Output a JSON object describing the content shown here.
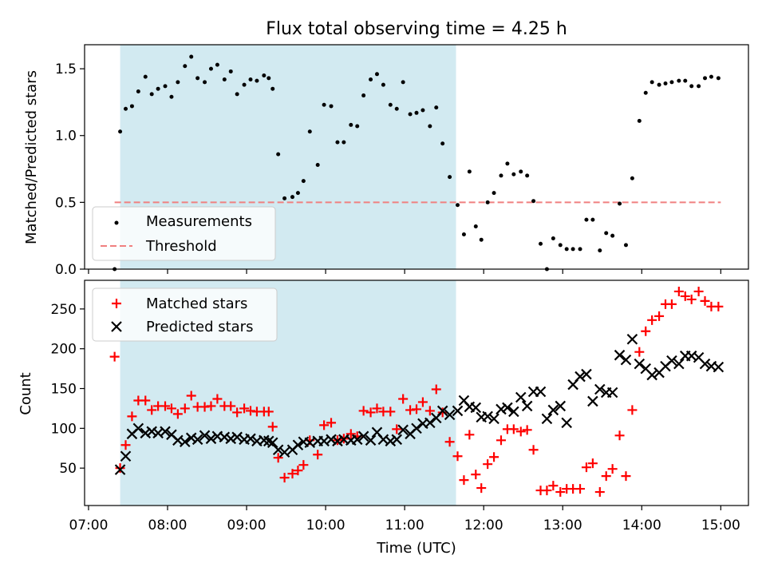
{
  "title": "Flux total observing time = 4.25 h",
  "colors": {
    "shade": "#add8e6",
    "matched": "#ff0000",
    "predicted": "#000000",
    "threshold": "#f08080",
    "measurement": "#000000"
  },
  "chart_data": [
    {
      "type": "scatter",
      "panel": "top",
      "ylabel": "Matched/Predicted stars",
      "xlabel": "",
      "ylim": [
        0,
        1.68
      ],
      "yticks": [
        0.0,
        0.5,
        1.0,
        1.5
      ],
      "ytick_labels": [
        "0.0",
        "0.5",
        "1.0",
        "1.5"
      ],
      "shaded_span": [
        7.4,
        11.65
      ],
      "legend_location": "lower-left",
      "threshold": {
        "label": "Threshold",
        "value": 0.5,
        "x_range": [
          7.33,
          15.0
        ]
      },
      "series": [
        {
          "name": "Measurements",
          "marker": "dot",
          "x": [
            7.33,
            7.4,
            7.47,
            7.55,
            7.63,
            7.72,
            7.8,
            7.88,
            7.97,
            8.05,
            8.13,
            8.22,
            8.3,
            8.38,
            8.47,
            8.55,
            8.63,
            8.72,
            8.8,
            8.88,
            8.97,
            9.05,
            9.13,
            9.22,
            9.28,
            9.33,
            9.4,
            9.48,
            9.58,
            9.65,
            9.72,
            9.8,
            9.9,
            9.98,
            10.07,
            10.15,
            10.23,
            10.32,
            10.4,
            10.48,
            10.57,
            10.65,
            10.73,
            10.82,
            10.9,
            10.98,
            11.07,
            11.15,
            11.23,
            11.32,
            11.4,
            11.48,
            11.57,
            11.67,
            11.75,
            11.82,
            11.9,
            11.97,
            12.05,
            12.13,
            12.22,
            12.3,
            12.38,
            12.47,
            12.55,
            12.63,
            12.72,
            12.8,
            12.88,
            12.97,
            13.05,
            13.13,
            13.22,
            13.3,
            13.38,
            13.47,
            13.55,
            13.63,
            13.72,
            13.8,
            13.88,
            13.97,
            14.05,
            14.13,
            14.22,
            14.3,
            14.38,
            14.47,
            14.55,
            14.63,
            14.72,
            14.8,
            14.88,
            14.97
          ],
          "y": [
            0.0,
            1.03,
            1.2,
            1.22,
            1.33,
            1.44,
            1.31,
            1.35,
            1.37,
            1.29,
            1.4,
            1.52,
            1.59,
            1.43,
            1.4,
            1.5,
            1.53,
            1.42,
            1.48,
            1.31,
            1.38,
            1.42,
            1.41,
            1.45,
            1.43,
            1.35,
            0.86,
            0.53,
            0.54,
            0.57,
            0.66,
            1.03,
            0.78,
            1.23,
            1.22,
            0.95,
            0.95,
            1.08,
            1.07,
            1.3,
            1.42,
            1.46,
            1.38,
            1.23,
            1.2,
            1.4,
            1.16,
            1.17,
            1.19,
            1.07,
            1.21,
            0.94,
            0.69,
            0.48,
            0.26,
            0.73,
            0.32,
            0.22,
            0.5,
            0.57,
            0.7,
            0.79,
            0.71,
            0.73,
            0.7,
            0.51,
            0.19,
            0.0,
            0.23,
            0.18,
            0.15,
            0.15,
            0.15,
            0.37,
            0.37,
            0.14,
            0.27,
            0.25,
            0.49,
            0.18,
            0.68,
            1.11,
            1.32,
            1.4,
            1.38,
            1.39,
            1.4,
            1.41,
            1.41,
            1.37,
            1.37,
            1.43,
            1.44,
            1.43
          ]
        }
      ]
    },
    {
      "type": "scatter",
      "panel": "bottom",
      "ylabel": "Count",
      "xlabel": "Time (UTC)",
      "ylim": [
        3,
        286
      ],
      "xlim": [
        6.95,
        15.35
      ],
      "yticks": [
        50,
        100,
        150,
        200,
        250
      ],
      "ytick_labels": [
        "50",
        "100",
        "150",
        "200",
        "250"
      ],
      "xticks": [
        7,
        8,
        9,
        10,
        11,
        12,
        13,
        14,
        15
      ],
      "xtick_labels": [
        "07:00",
        "08:00",
        "09:00",
        "10:00",
        "11:00",
        "12:00",
        "13:00",
        "14:00",
        "15:00"
      ],
      "shaded_span": [
        7.4,
        11.65
      ],
      "legend_location": "upper-left",
      "series": [
        {
          "name": "Matched stars",
          "marker": "plus",
          "x": [
            7.33,
            7.4,
            7.47,
            7.55,
            7.63,
            7.72,
            7.8,
            7.88,
            7.97,
            8.05,
            8.13,
            8.22,
            8.3,
            8.38,
            8.47,
            8.55,
            8.63,
            8.72,
            8.8,
            8.88,
            8.97,
            9.05,
            9.13,
            9.22,
            9.28,
            9.33,
            9.4,
            9.48,
            9.58,
            9.65,
            9.72,
            9.8,
            9.9,
            9.98,
            10.07,
            10.15,
            10.23,
            10.32,
            10.4,
            10.48,
            10.57,
            10.65,
            10.73,
            10.82,
            10.9,
            10.98,
            11.07,
            11.15,
            11.23,
            11.32,
            11.4,
            11.48,
            11.57,
            11.67,
            11.75,
            11.82,
            11.9,
            11.97,
            12.05,
            12.13,
            12.22,
            12.3,
            12.38,
            12.47,
            12.55,
            12.63,
            12.72,
            12.8,
            12.88,
            12.97,
            13.05,
            13.13,
            13.22,
            13.3,
            13.38,
            13.47,
            13.55,
            13.63,
            13.72,
            13.8,
            13.88,
            13.97,
            14.05,
            14.13,
            14.22,
            14.3,
            14.38,
            14.47,
            14.55,
            14.63,
            14.72,
            14.8,
            14.88,
            14.97
          ],
          "y": [
            190,
            50,
            79,
            115,
            135,
            135,
            123,
            128,
            128,
            125,
            118,
            125,
            141,
            127,
            127,
            128,
            137,
            128,
            128,
            120,
            125,
            122,
            121,
            121,
            121,
            102,
            63,
            38,
            43,
            47,
            54,
            85,
            67,
            104,
            107,
            85,
            87,
            93,
            90,
            122,
            120,
            125,
            121,
            121,
            99,
            137,
            123,
            124,
            133,
            122,
            149,
            120,
            83,
            65,
            35,
            92,
            42,
            25,
            55,
            64,
            85,
            99,
            99,
            96,
            98,
            73,
            22,
            22,
            28,
            20,
            24,
            24,
            24,
            51,
            56,
            20,
            40,
            49,
            91,
            40,
            123,
            196,
            222,
            236,
            241,
            256,
            256,
            272,
            266,
            262,
            272,
            260,
            253,
            253
          ]
        },
        {
          "name": "Predicted stars",
          "marker": "x",
          "x": [
            7.4,
            7.47,
            7.55,
            7.63,
            7.72,
            7.8,
            7.88,
            7.97,
            8.05,
            8.13,
            8.22,
            8.3,
            8.38,
            8.47,
            8.55,
            8.63,
            8.72,
            8.8,
            8.88,
            8.97,
            9.05,
            9.13,
            9.22,
            9.28,
            9.33,
            9.4,
            9.48,
            9.58,
            9.65,
            9.72,
            9.8,
            9.9,
            9.98,
            10.07,
            10.15,
            10.23,
            10.32,
            10.4,
            10.48,
            10.57,
            10.65,
            10.73,
            10.82,
            10.9,
            10.98,
            11.07,
            11.15,
            11.23,
            11.32,
            11.4,
            11.48,
            11.57,
            11.67,
            11.75,
            11.82,
            11.9,
            11.97,
            12.05,
            12.13,
            12.22,
            12.3,
            12.38,
            12.47,
            12.55,
            12.63,
            12.72,
            12.8,
            12.88,
            12.97,
            13.05,
            13.13,
            13.22,
            13.3,
            13.38,
            13.47,
            13.55,
            13.63,
            13.72,
            13.8,
            13.88,
            13.97,
            14.05,
            14.13,
            14.22,
            14.3,
            14.38,
            14.47,
            14.55,
            14.63,
            14.72,
            14.8,
            14.88,
            14.97
          ],
          "y": [
            48,
            65,
            93,
            100,
            94,
            96,
            94,
            96,
            92,
            85,
            83,
            88,
            86,
            91,
            87,
            90,
            89,
            87,
            89,
            86,
            87,
            84,
            85,
            84,
            82,
            73,
            70,
            73,
            79,
            83,
            82,
            84,
            84,
            86,
            84,
            86,
            85,
            86,
            90,
            85,
            95,
            86,
            84,
            86,
            98,
            93,
            100,
            106,
            107,
            113,
            122,
            117,
            122,
            135,
            127,
            126,
            114,
            115,
            112,
            124,
            126,
            121,
            139,
            128,
            146,
            146,
            112,
            123,
            128,
            107,
            155,
            165,
            168,
            134,
            149,
            145,
            145,
            192,
            186,
            212,
            181,
            175,
            167,
            170,
            178,
            185,
            181,
            191,
            191,
            189,
            181,
            178,
            177
          ]
        }
      ]
    }
  ]
}
